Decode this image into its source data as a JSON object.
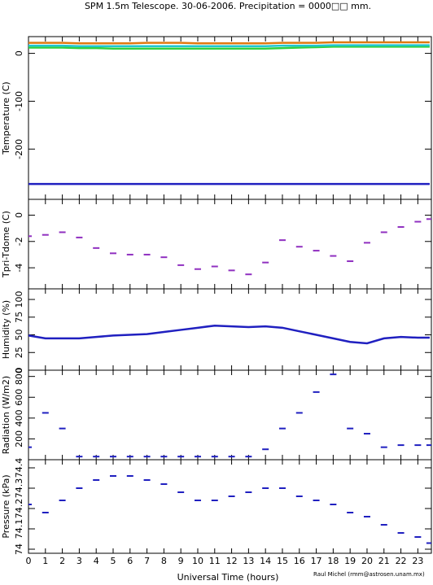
{
  "chart_data": [
    {
      "type": "line",
      "title": "SPM 1.5m Telescope. 30-06-2006. Precipitation = 0000□□ mm.",
      "y_label": "Temperature (C)",
      "x": [
        0,
        1,
        2,
        3,
        4,
        5,
        6,
        7,
        8,
        9,
        10,
        11,
        12,
        13,
        14,
        15,
        16,
        17,
        18,
        19,
        20,
        21,
        22,
        23,
        23.7
      ],
      "series": [
        {
          "color": "#e07a10",
          "values": [
            22,
            22,
            22,
            21,
            21,
            21,
            21,
            22,
            22,
            22,
            21,
            21,
            21,
            21,
            21,
            22,
            22,
            22,
            23,
            23,
            23,
            23,
            23,
            23,
            23
          ]
        },
        {
          "color": "#30d040",
          "values": [
            12,
            12,
            12,
            11,
            11,
            10,
            10,
            10,
            10,
            10,
            10,
            10,
            10,
            10,
            10,
            11,
            12,
            13,
            14,
            14,
            14,
            14,
            14,
            14,
            14
          ]
        },
        {
          "color": "#20c8d0",
          "values": [
            16,
            16,
            16,
            15,
            15,
            15,
            15,
            15,
            15,
            15,
            15,
            15,
            15,
            15,
            15,
            16,
            16,
            16,
            17,
            17,
            17,
            17,
            17,
            17,
            17
          ]
        },
        {
          "color": "#2020c0",
          "values": [
            -273,
            -273,
            -273,
            -273,
            -273,
            -273,
            -273,
            -273,
            -273,
            -273,
            -273,
            -273,
            -273,
            -273,
            -273,
            -273,
            -273,
            -273,
            -273,
            -273,
            -273,
            -273,
            -273,
            -273,
            -273
          ]
        }
      ],
      "ylim": [
        -305,
        35
      ],
      "yticks": [
        0,
        -100,
        -200
      ]
    },
    {
      "type": "scatter",
      "y_label": "Tpri-Tdome (C)",
      "x": [
        0,
        1,
        2,
        3,
        4,
        5,
        6,
        7,
        8,
        9,
        10,
        11,
        12,
        13,
        14,
        15,
        16,
        17,
        18,
        19,
        20,
        21,
        22,
        23,
        23.7
      ],
      "series": [
        {
          "color": "#9030c0",
          "values": [
            -1.6,
            -1.5,
            -1.3,
            -1.7,
            -2.5,
            -2.9,
            -3.0,
            -3.0,
            -3.2,
            -3.8,
            -4.1,
            -3.9,
            -4.2,
            -4.5,
            -3.6,
            -1.9,
            -2.4,
            -2.7,
            -3.1,
            -3.5,
            -2.1,
            -1.3,
            -0.9,
            -0.5,
            -0.3
          ]
        }
      ],
      "ylim": [
        -5.6,
        1.2
      ],
      "yticks": [
        -4,
        -2,
        0
      ]
    },
    {
      "type": "line",
      "y_label": "Humidity (%)",
      "x": [
        0,
        1,
        2,
        3,
        4,
        5,
        6,
        7,
        8,
        9,
        10,
        11,
        12,
        13,
        14,
        15,
        16,
        17,
        18,
        19,
        20,
        21,
        22,
        23,
        23.7
      ],
      "series": [
        {
          "color": "#2020c0",
          "values": [
            49,
            45,
            45,
            45,
            47,
            49,
            50,
            51,
            54,
            57,
            60,
            63,
            62,
            61,
            62,
            60,
            55,
            50,
            45,
            40,
            38,
            45,
            47,
            46,
            46
          ]
        }
      ],
      "ylim": [
        0,
        115
      ],
      "yticks": [
        0,
        25,
        50,
        75,
        100
      ]
    },
    {
      "type": "scatter",
      "y_label": "Radiation (W/m2)",
      "x": [
        0,
        1,
        2,
        3,
        4,
        5,
        6,
        7,
        8,
        9,
        10,
        11,
        12,
        13,
        14,
        15,
        16,
        17,
        18,
        19,
        20,
        21,
        22,
        23,
        23.7
      ],
      "series": [
        {
          "color": "#2020c0",
          "values": [
            120,
            450,
            300,
            30,
            30,
            30,
            30,
            30,
            30,
            30,
            30,
            30,
            30,
            30,
            100,
            300,
            450,
            650,
            820,
            300,
            250,
            120,
            140,
            140,
            140
          ]
        }
      ],
      "ylim": [
        0,
        860
      ],
      "yticks": [
        200,
        400,
        600,
        800
      ]
    },
    {
      "type": "scatter",
      "y_label": "Pressure (kPa)",
      "x_label": "Universal Time (hours)",
      "annotation": "Raul Michel (rmm@astrosen.unam.mx)",
      "x": [
        0,
        1,
        2,
        3,
        4,
        5,
        6,
        7,
        8,
        9,
        10,
        11,
        12,
        13,
        14,
        15,
        16,
        17,
        18,
        19,
        20,
        21,
        22,
        23,
        23.7
      ],
      "series": [
        {
          "color": "#2020c0",
          "values": [
            74.22,
            74.18,
            74.24,
            74.3,
            74.34,
            74.36,
            74.36,
            74.34,
            74.32,
            74.28,
            74.24,
            74.24,
            74.26,
            74.28,
            74.3,
            74.3,
            74.26,
            74.24,
            74.22,
            74.18,
            74.16,
            74.12,
            74.08,
            74.06,
            74.03
          ]
        }
      ],
      "ylim": [
        73.98,
        74.44
      ],
      "yticks": [
        74,
        74.1,
        74.2,
        74.3,
        74.4
      ],
      "xlim": [
        0,
        23.8
      ],
      "xticks": [
        0,
        1,
        2,
        3,
        4,
        5,
        6,
        7,
        8,
        9,
        10,
        11,
        12,
        13,
        14,
        15,
        16,
        17,
        18,
        19,
        20,
        21,
        22,
        23
      ]
    }
  ]
}
